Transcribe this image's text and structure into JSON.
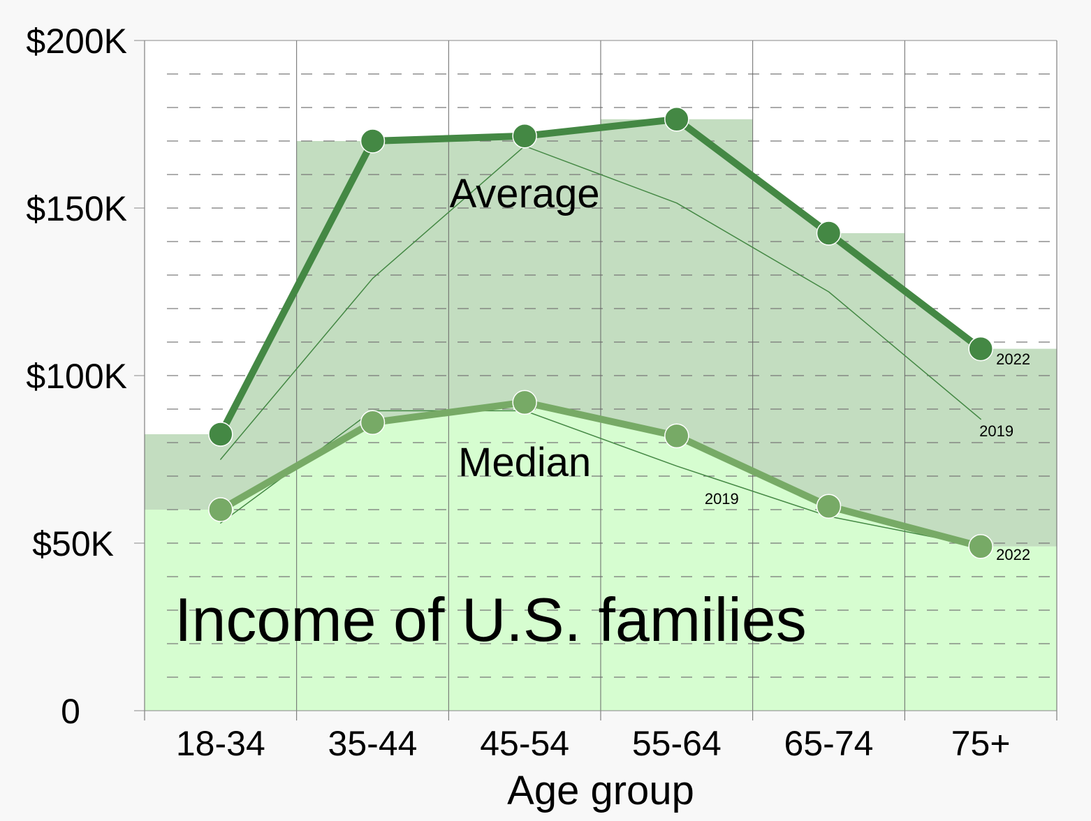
{
  "chart_data": {
    "type": "line",
    "title": "Income of U.S. families",
    "xlabel": "Age group",
    "ylabel": "",
    "categories": [
      "18-34",
      "35-44",
      "45-54",
      "55-64",
      "65-74",
      "75+"
    ],
    "ylim": [
      0,
      200000
    ],
    "yticks": [
      0,
      50000,
      100000,
      150000,
      200000
    ],
    "ytick_labels": [
      "0",
      "$50K",
      "$100K",
      "$150K",
      "$200K"
    ],
    "grid": true,
    "groups": [
      {
        "label": "Average",
        "series": [
          {
            "name": "2022",
            "values": [
              82500,
              170000,
              171500,
              176500,
              142500,
              108000
            ]
          },
          {
            "name": "2019",
            "values": [
              75000,
              129000,
              168500,
              151500,
              125000,
              87000
            ]
          }
        ]
      },
      {
        "label": "Median",
        "series": [
          {
            "name": "2022",
            "values": [
              60000,
              86000,
              92000,
              82000,
              61000,
              49000
            ]
          },
          {
            "name": "2019",
            "values": [
              56000,
              89500,
              89500,
              73000,
              58000,
              49000
            ]
          }
        ]
      }
    ],
    "colors": {
      "average_line": "#448844",
      "median_line": "#77aa66",
      "average_fill": "#c3ddc0",
      "median_fill": "#d6fdd0",
      "marker_stroke": "#ffffff"
    }
  }
}
